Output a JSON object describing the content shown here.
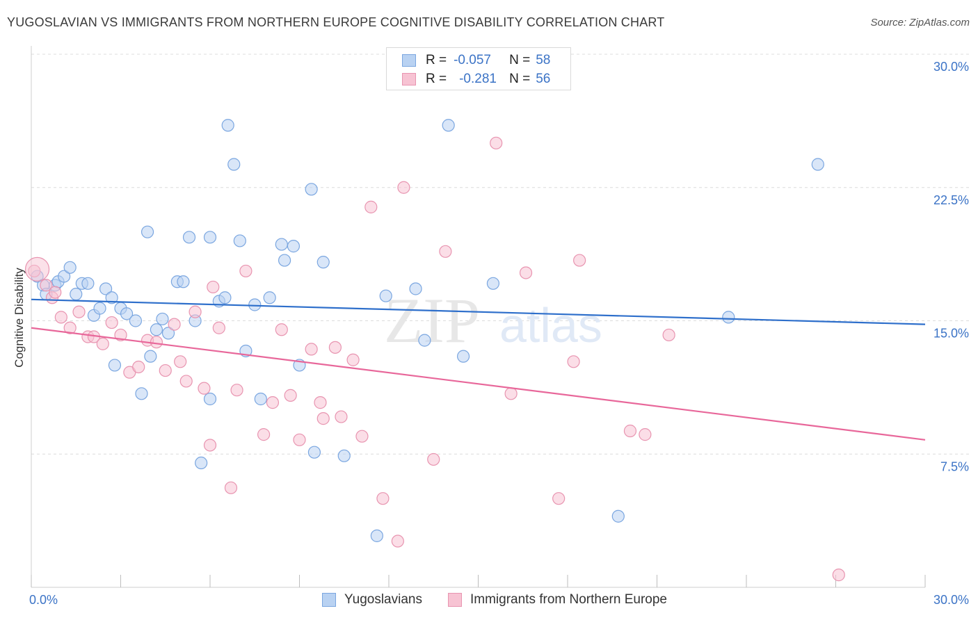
{
  "title": "YUGOSLAVIAN VS IMMIGRANTS FROM NORTHERN EUROPE COGNITIVE DISABILITY CORRELATION CHART",
  "source": "Source: ZipAtlas.com",
  "watermark": {
    "zip": "ZIP",
    "atlas": "atlas"
  },
  "legend": {
    "rows": [
      {
        "r_label": "R =",
        "r_value": "-0.057",
        "n_label": "N =",
        "n_value": "58"
      },
      {
        "r_label": "R =",
        "r_value": "-0.281",
        "n_label": "N =",
        "n_value": "56"
      }
    ]
  },
  "colors": {
    "blue_fill": "#b9d2f2",
    "blue_stroke": "#7aa6e0",
    "blue_line": "#2e6fcb",
    "pink_fill": "#f7c3d3",
    "pink_stroke": "#e894b0",
    "pink_line": "#e8679a",
    "tick_label": "#3b73c6",
    "grid": "#dcdcdc"
  },
  "chart_data": {
    "type": "scatter",
    "title": "YUGOSLAVIAN VS IMMIGRANTS FROM NORTHERN EUROPE COGNITIVE DISABILITY CORRELATION CHART",
    "xlabel": "",
    "ylabel": "Cognitive Disability",
    "xlim": [
      0,
      30
    ],
    "ylim": [
      0,
      30
    ],
    "x_tick_labels": [
      "0.0%",
      "30.0%"
    ],
    "y_ticks": [
      7.5,
      15.0,
      22.5,
      30.0
    ],
    "y_tick_labels": [
      "7.5%",
      "15.0%",
      "22.5%",
      "30.0%"
    ],
    "grid": true,
    "legend_position": "bottom",
    "series": [
      {
        "name": "Yugoslavians",
        "trend": {
          "x": [
            0,
            30
          ],
          "y": [
            16.2,
            14.8
          ]
        },
        "points": [
          [
            0.2,
            17.5
          ],
          [
            0.4,
            17.0
          ],
          [
            0.5,
            16.5
          ],
          [
            0.8,
            17.0
          ],
          [
            0.9,
            17.2
          ],
          [
            1.1,
            17.5
          ],
          [
            1.3,
            18.0
          ],
          [
            1.5,
            16.5
          ],
          [
            1.7,
            17.1
          ],
          [
            1.9,
            17.1
          ],
          [
            2.1,
            15.3
          ],
          [
            2.3,
            15.7
          ],
          [
            2.5,
            16.8
          ],
          [
            2.7,
            16.3
          ],
          [
            2.8,
            12.5
          ],
          [
            3.0,
            15.7
          ],
          [
            3.2,
            15.4
          ],
          [
            3.5,
            15.0
          ],
          [
            3.7,
            10.9
          ],
          [
            3.9,
            20.0
          ],
          [
            4.0,
            13.0
          ],
          [
            4.2,
            14.5
          ],
          [
            4.4,
            15.1
          ],
          [
            4.6,
            14.3
          ],
          [
            4.9,
            17.2
          ],
          [
            5.1,
            17.2
          ],
          [
            5.3,
            19.7
          ],
          [
            5.5,
            15.0
          ],
          [
            5.7,
            7.0
          ],
          [
            6.0,
            10.6
          ],
          [
            6.0,
            19.7
          ],
          [
            6.3,
            16.1
          ],
          [
            6.5,
            16.3
          ],
          [
            6.6,
            26.0
          ],
          [
            6.8,
            23.8
          ],
          [
            7.0,
            19.5
          ],
          [
            7.2,
            13.3
          ],
          [
            7.5,
            15.9
          ],
          [
            7.7,
            10.6
          ],
          [
            8.0,
            16.3
          ],
          [
            8.4,
            19.3
          ],
          [
            8.5,
            18.4
          ],
          [
            8.8,
            19.2
          ],
          [
            9.0,
            12.5
          ],
          [
            9.4,
            22.4
          ],
          [
            9.5,
            7.6
          ],
          [
            9.8,
            18.3
          ],
          [
            10.5,
            7.4
          ],
          [
            11.6,
            2.9
          ],
          [
            11.9,
            16.4
          ],
          [
            12.9,
            16.8
          ],
          [
            13.2,
            13.9
          ],
          [
            14.0,
            26.0
          ],
          [
            14.5,
            13.0
          ],
          [
            15.5,
            17.1
          ],
          [
            19.7,
            4.0
          ],
          [
            23.4,
            15.2
          ],
          [
            26.4,
            23.8
          ]
        ]
      },
      {
        "name": "Immigrants from Northern Europe",
        "trend": {
          "x": [
            0,
            30
          ],
          "y": [
            14.6,
            8.3
          ]
        },
        "points": [
          [
            0.1,
            17.8
          ],
          [
            0.5,
            17.0
          ],
          [
            0.7,
            16.3
          ],
          [
            1.0,
            15.2
          ],
          [
            1.3,
            14.6
          ],
          [
            1.6,
            15.5
          ],
          [
            1.9,
            14.1
          ],
          [
            2.1,
            14.1
          ],
          [
            2.4,
            13.7
          ],
          [
            2.7,
            14.9
          ],
          [
            3.0,
            14.2
          ],
          [
            3.3,
            12.1
          ],
          [
            3.6,
            12.4
          ],
          [
            3.9,
            13.9
          ],
          [
            4.2,
            13.8
          ],
          [
            4.5,
            12.2
          ],
          [
            4.8,
            14.8
          ],
          [
            5.0,
            12.7
          ],
          [
            5.2,
            11.6
          ],
          [
            5.5,
            15.5
          ],
          [
            5.8,
            11.2
          ],
          [
            6.0,
            8.0
          ],
          [
            6.1,
            16.9
          ],
          [
            6.3,
            14.6
          ],
          [
            6.7,
            5.6
          ],
          [
            6.9,
            11.1
          ],
          [
            7.2,
            17.8
          ],
          [
            7.8,
            8.6
          ],
          [
            8.1,
            10.4
          ],
          [
            8.4,
            14.5
          ],
          [
            8.7,
            10.8
          ],
          [
            9.0,
            8.3
          ],
          [
            9.4,
            13.4
          ],
          [
            9.7,
            10.4
          ],
          [
            9.8,
            9.5
          ],
          [
            10.2,
            13.5
          ],
          [
            10.4,
            9.6
          ],
          [
            10.8,
            12.8
          ],
          [
            11.1,
            8.5
          ],
          [
            11.4,
            21.4
          ],
          [
            11.8,
            5.0
          ],
          [
            12.3,
            2.6
          ],
          [
            12.5,
            22.5
          ],
          [
            13.5,
            7.2
          ],
          [
            13.9,
            18.9
          ],
          [
            15.6,
            25.0
          ],
          [
            16.1,
            10.9
          ],
          [
            16.6,
            17.7
          ],
          [
            17.7,
            5.0
          ],
          [
            18.2,
            12.7
          ],
          [
            18.4,
            18.4
          ],
          [
            20.1,
            8.8
          ],
          [
            20.6,
            8.6
          ],
          [
            21.4,
            14.2
          ],
          [
            27.1,
            0.7
          ],
          [
            0.8,
            16.6
          ]
        ]
      }
    ]
  }
}
